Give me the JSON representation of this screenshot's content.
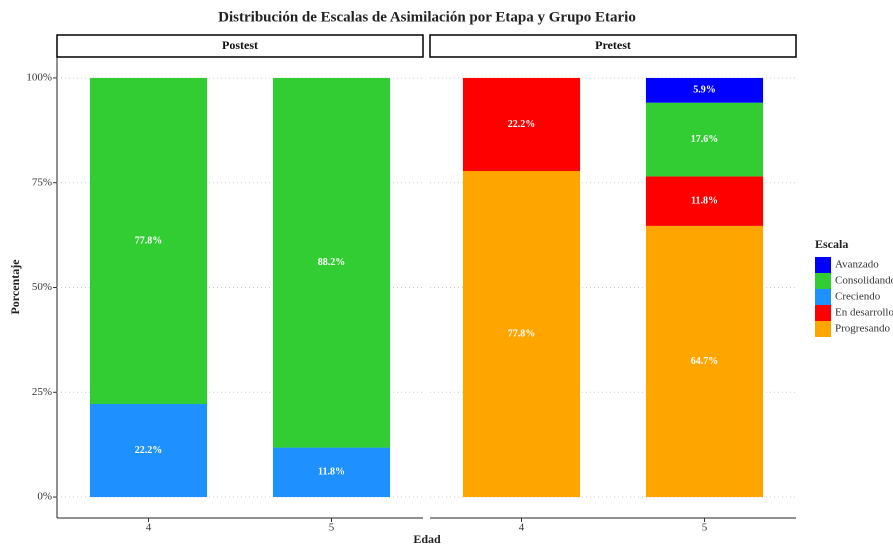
{
  "chart_data": {
    "type": "bar",
    "stacked": true,
    "title": "Distribución de Escalas de Asimilación por Etapa y Grupo Etario",
    "x_label": "Edad",
    "y_label": "Porcentaje",
    "legend_title": "Escala",
    "legend": "right",
    "ylim": [
      -5,
      105
    ],
    "yticks": [
      {
        "value": 0,
        "label": "0%"
      },
      {
        "value": 25,
        "label": "25%"
      },
      {
        "value": 50,
        "label": "50%"
      },
      {
        "value": 75,
        "label": "75%"
      },
      {
        "value": 100,
        "label": "100%"
      }
    ],
    "grid": true,
    "panels": [
      {
        "title": "Postest",
        "categories": [
          "4",
          "5"
        ]
      },
      {
        "title": "Pretest",
        "categories": [
          "4",
          "5"
        ]
      }
    ],
    "series": [
      {
        "name": "Avanzado",
        "color": "#0000ff",
        "values": [
          [
            null,
            null
          ],
          [
            null,
            5.9
          ]
        ],
        "value_labels": [
          [
            null,
            null
          ],
          [
            null,
            "5.9%"
          ]
        ]
      },
      {
        "name": "Consolidando",
        "color": "#32cd32",
        "values": [
          [
            77.8,
            88.2
          ],
          [
            null,
            17.6
          ]
        ],
        "value_labels": [
          [
            "77.8%",
            "88.2%"
          ],
          [
            null,
            "17.6%"
          ]
        ]
      },
      {
        "name": "Creciendo",
        "color": "#1e90ff",
        "values": [
          [
            22.2,
            11.8
          ],
          [
            null,
            null
          ]
        ],
        "value_labels": [
          [
            "22.2%",
            "11.8%"
          ],
          [
            null,
            null
          ]
        ]
      },
      {
        "name": "En desarrollo",
        "color": "#ff0000",
        "values": [
          [
            null,
            null
          ],
          [
            22.2,
            11.8
          ]
        ],
        "value_labels": [
          [
            null,
            null
          ],
          [
            "22.2%",
            "11.8%"
          ]
        ]
      },
      {
        "name": "Progresando",
        "color": "#ffa500",
        "values": [
          [
            null,
            null
          ],
          [
            77.8,
            64.7
          ]
        ],
        "value_labels": [
          [
            null,
            null
          ],
          [
            "77.8%",
            "64.7%"
          ]
        ]
      }
    ]
  }
}
